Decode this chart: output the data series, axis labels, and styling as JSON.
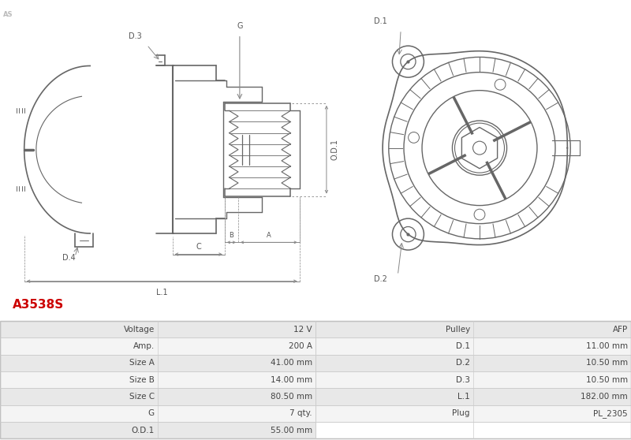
{
  "title": "A3538S",
  "title_color": "#cc0000",
  "background_color": "#ffffff",
  "table_rows": [
    [
      "Voltage",
      "12 V",
      "Pulley",
      "AFP"
    ],
    [
      "Amp.",
      "200 A",
      "D.1",
      "11.00 mm"
    ],
    [
      "Size A",
      "41.00 mm",
      "D.2",
      "10.50 mm"
    ],
    [
      "Size B",
      "14.00 mm",
      "D.3",
      "10.50 mm"
    ],
    [
      "Size C",
      "80.50 mm",
      "L.1",
      "182.00 mm"
    ],
    [
      "G",
      "7 qty.",
      "Plug",
      "PL_2305"
    ],
    [
      "O.D.1",
      "55.00 mm",
      "",
      ""
    ]
  ],
  "row_colors": [
    "#e8e8e8",
    "#f4f4f4"
  ],
  "line_color": "#666666",
  "dim_line_color": "#888888",
  "label_color": "#555555",
  "fig_width": 8.0,
  "fig_height": 5.58
}
